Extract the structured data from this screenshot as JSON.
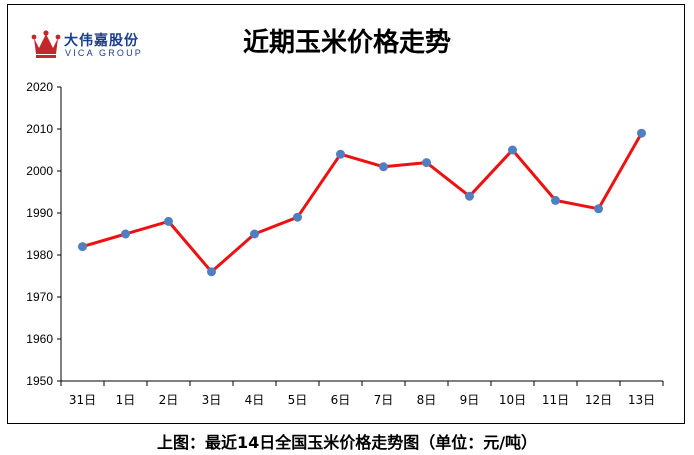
{
  "logo": {
    "name_cn": "大伟嘉股份",
    "name_en": "VICA GROUP",
    "brand_color": "#1a3f8a",
    "crown_color": "#c0282c"
  },
  "caption": "上图：最近14日全国玉米价格走势图（单位：元/吨）",
  "chart_data": {
    "type": "line",
    "title": "近期玉米价格走势",
    "categories": [
      "31日",
      "1日",
      "2日",
      "3日",
      "4日",
      "5日",
      "6日",
      "7日",
      "8日",
      "9日",
      "10日",
      "11日",
      "12日",
      "13日"
    ],
    "values": [
      1982,
      1985,
      1988,
      1976,
      1985,
      1989,
      2004,
      2001,
      2002,
      1994,
      2005,
      1993,
      1991,
      2009
    ],
    "ylim": [
      1950,
      2020
    ],
    "yticks": [
      1950,
      1960,
      1970,
      1980,
      1990,
      2000,
      2010,
      2020
    ],
    "grid": false,
    "line_color": "#ee1111",
    "marker_color": "#4f7fc1"
  }
}
